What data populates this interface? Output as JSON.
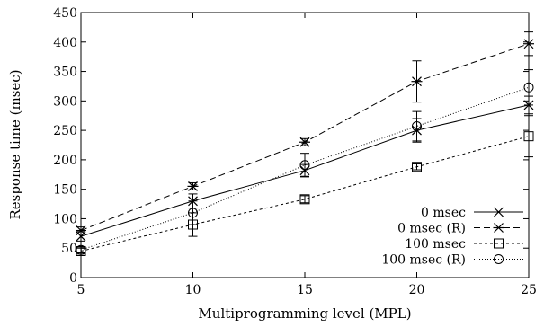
{
  "chart_data": {
    "type": "line",
    "title": "",
    "xlabel": "Multiprogramming level (MPL)",
    "ylabel": "Response time (msec)",
    "xlim": [
      5,
      25
    ],
    "ylim": [
      0,
      450
    ],
    "xticks": [
      5,
      10,
      15,
      20,
      25
    ],
    "yticks": [
      0,
      50,
      100,
      150,
      200,
      250,
      300,
      350,
      400,
      450
    ],
    "grid": false,
    "legend_position": "bottom-right",
    "x": [
      5,
      10,
      15,
      20,
      25
    ],
    "series": [
      {
        "name": "0 msec",
        "marker": "x",
        "line_style": "solid",
        "values": [
          70,
          130,
          182,
          250,
          293
        ],
        "error": [
          8,
          12,
          10,
          20,
          15
        ]
      },
      {
        "name": "0 msec (R)",
        "marker": "asterisk",
        "line_style": "dashed",
        "values": [
          80,
          155,
          230,
          333,
          397
        ],
        "error": [
          6,
          6,
          6,
          35,
          20
        ]
      },
      {
        "name": "100 msec",
        "marker": "square",
        "line_style": "dashed-short",
        "values": [
          45,
          90,
          133,
          188,
          240
        ],
        "error": [
          5,
          20,
          6,
          5,
          35
        ]
      },
      {
        "name": "100 msec (R)",
        "marker": "circle",
        "line_style": "dotted",
        "values": [
          47,
          110,
          191,
          257,
          323
        ],
        "error": [
          5,
          20,
          20,
          25,
          30
        ]
      }
    ]
  }
}
